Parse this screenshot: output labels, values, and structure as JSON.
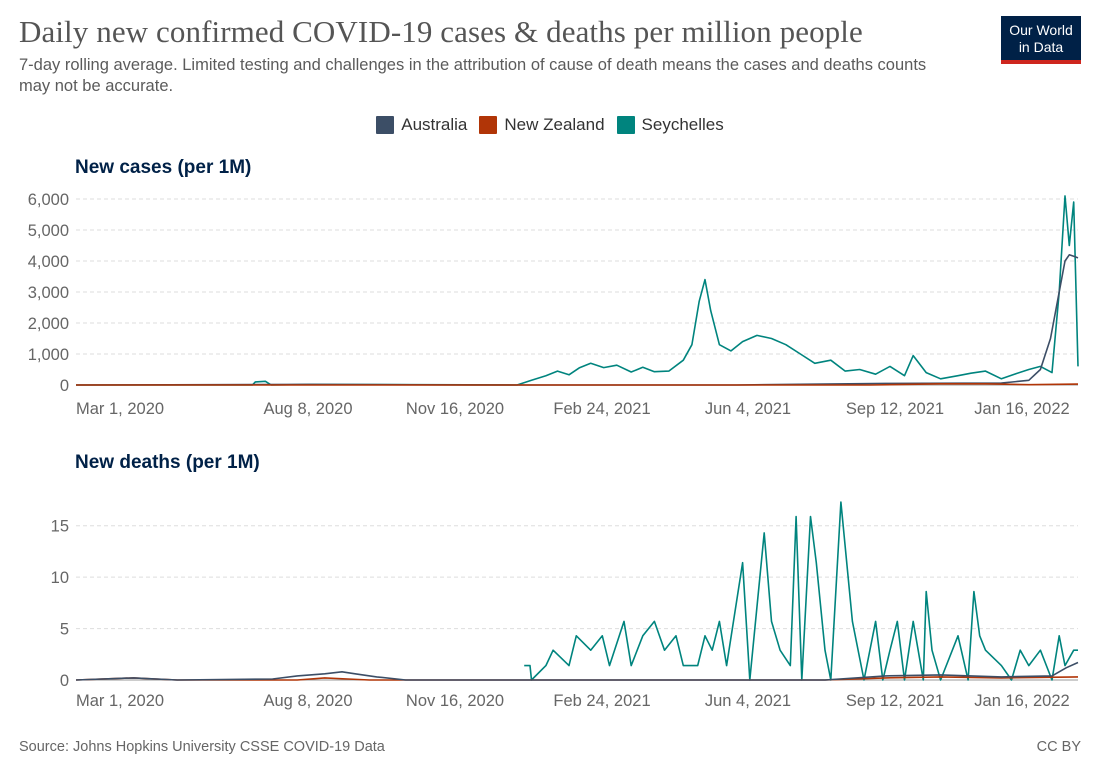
{
  "header": {
    "title": "Daily new confirmed COVID-19 cases & deaths per million people",
    "subtitle": "7-day rolling average. Limited testing and challenges in the attribution of cause of death means the cases and deaths counts may not be accurate.",
    "logo_line1": "Our World",
    "logo_line2": "in Data"
  },
  "colors": {
    "Australia": "#3c4e66",
    "New Zealand": "#b13507",
    "Seychelles": "#00847e"
  },
  "legend": [
    "Australia",
    "New Zealand",
    "Seychelles"
  ],
  "footer": {
    "source": "Source: Johns Hopkins University CSSE COVID-19 Data",
    "license": "CC BY"
  },
  "chart_data": [
    {
      "type": "line",
      "title": "New cases (per 1M)",
      "x_ticks": [
        "Mar 1, 2020",
        "Aug 8, 2020",
        "Nov 16, 2020",
        "Feb 24, 2021",
        "Jun 4, 2021",
        "Sep 12, 2021",
        "Jan 16, 2022"
      ],
      "ylim": [
        0,
        6000
      ],
      "y_ticks": [
        0,
        1000,
        2000,
        3000,
        4000,
        5000,
        6000
      ],
      "y_tick_labels": [
        "0",
        "1,000",
        "2,000",
        "3,000",
        "4,000",
        "5,000",
        "6,000"
      ],
      "grid": true,
      "legend": "top-center",
      "series": [
        {
          "name": "Seychelles",
          "x": [
            "2020-03-01",
            "2020-07-01",
            "2020-07-03",
            "2020-07-10",
            "2020-07-14",
            "2020-08-10",
            "2020-12-31",
            "2021-01-10",
            "2021-01-20",
            "2021-01-28",
            "2021-02-05",
            "2021-02-12",
            "2021-02-20",
            "2021-03-01",
            "2021-03-10",
            "2021-03-20",
            "2021-03-28",
            "2021-04-05",
            "2021-04-15",
            "2021-04-25",
            "2021-05-01",
            "2021-05-06",
            "2021-05-10",
            "2021-05-14",
            "2021-05-20",
            "2021-05-28",
            "2021-06-05",
            "2021-06-15",
            "2021-06-25",
            "2021-07-05",
            "2021-07-15",
            "2021-07-25",
            "2021-08-05",
            "2021-08-15",
            "2021-08-25",
            "2021-09-05",
            "2021-09-15",
            "2021-09-25",
            "2021-10-01",
            "2021-10-10",
            "2021-10-20",
            "2021-11-01",
            "2021-11-10",
            "2021-11-20",
            "2021-12-01",
            "2021-12-10",
            "2021-12-20",
            "2021-12-28",
            "2022-01-05",
            "2022-01-10",
            "2022-01-14",
            "2022-01-17",
            "2022-01-20",
            "2022-01-23"
          ],
          "y": [
            0,
            0,
            100,
            120,
            0,
            20,
            0,
            150,
            300,
            450,
            330,
            550,
            700,
            560,
            640,
            420,
            570,
            430,
            450,
            800,
            1300,
            2700,
            3400,
            2400,
            1300,
            1100,
            1400,
            1600,
            1500,
            1300,
            1000,
            700,
            800,
            450,
            500,
            350,
            600,
            300,
            950,
            400,
            200,
            300,
            380,
            450,
            200,
            350,
            500,
            600,
            400,
            3000,
            6100,
            4500,
            5900,
            600
          ]
        },
        {
          "name": "Australia",
          "x": [
            "2020-03-01",
            "2020-08-08",
            "2020-12-01",
            "2021-06-01",
            "2021-09-12",
            "2021-12-01",
            "2021-12-20",
            "2021-12-28",
            "2022-01-04",
            "2022-01-10",
            "2022-01-14",
            "2022-01-17",
            "2022-01-20",
            "2022-01-23"
          ],
          "y": [
            0,
            20,
            0,
            0,
            50,
            60,
            150,
            500,
            1500,
            3000,
            4000,
            4200,
            4150,
            4100
          ]
        },
        {
          "name": "New Zealand",
          "x": [
            "2020-03-01",
            "2021-09-01",
            "2021-10-20",
            "2021-11-20",
            "2021-12-20",
            "2022-01-23"
          ],
          "y": [
            0,
            0,
            40,
            40,
            10,
            30
          ]
        }
      ]
    },
    {
      "type": "line",
      "title": "New deaths (per 1M)",
      "x_ticks": [
        "Mar 1, 2020",
        "Aug 8, 2020",
        "Nov 16, 2020",
        "Feb 24, 2021",
        "Jun 4, 2021",
        "Sep 12, 2021",
        "Jan 16, 2022"
      ],
      "ylim": [
        0,
        17.5
      ],
      "y_ticks": [
        0,
        5,
        10,
        15
      ],
      "y_tick_labels": [
        "0",
        "5",
        "10",
        "15"
      ],
      "grid": true,
      "series": [
        {
          "name": "Seychelles",
          "x": [
            "2021-01-05",
            "2021-01-09",
            "2021-01-10",
            "2021-01-20",
            "2021-01-25",
            "2021-02-05",
            "2021-02-10",
            "2021-02-20",
            "2021-02-28",
            "2021-03-05",
            "2021-03-15",
            "2021-03-20",
            "2021-03-28",
            "2021-04-05",
            "2021-04-12",
            "2021-04-20",
            "2021-04-25",
            "2021-05-05",
            "2021-05-10",
            "2021-05-15",
            "2021-05-20",
            "2021-05-25",
            "2021-06-05",
            "2021-06-10",
            "2021-06-20",
            "2021-06-25",
            "2021-07-01",
            "2021-07-08",
            "2021-07-12",
            "2021-07-16",
            "2021-07-22",
            "2021-07-26",
            "2021-08-01",
            "2021-08-05",
            "2021-08-12",
            "2021-08-20",
            "2021-08-28",
            "2021-09-05",
            "2021-09-10",
            "2021-09-15",
            "2021-09-20",
            "2021-09-25",
            "2021-10-01",
            "2021-10-08",
            "2021-10-10",
            "2021-10-14",
            "2021-10-20",
            "2021-11-01",
            "2021-11-08",
            "2021-11-12",
            "2021-11-16",
            "2021-11-20",
            "2021-12-01",
            "2021-12-08",
            "2021-12-14",
            "2021-12-20",
            "2021-12-28",
            "2022-01-05",
            "2022-01-10",
            "2022-01-14",
            "2022-01-20",
            "2022-01-23"
          ],
          "y": [
            1.4,
            1.4,
            0,
            1.4,
            2.9,
            1.4,
            4.3,
            2.9,
            4.3,
            1.4,
            5.7,
            1.4,
            4.3,
            5.7,
            2.9,
            4.3,
            1.4,
            1.4,
            4.3,
            2.9,
            5.7,
            1.4,
            11.4,
            0,
            14.3,
            5.7,
            2.9,
            1.4,
            15.9,
            0,
            15.9,
            11.4,
            2.9,
            0,
            17.3,
            5.7,
            0,
            5.7,
            0,
            2.9,
            5.7,
            0,
            5.7,
            0,
            8.6,
            2.9,
            0,
            4.3,
            0,
            8.6,
            4.3,
            2.9,
            1.4,
            0,
            2.9,
            1.4,
            2.9,
            0,
            4.3,
            1.4,
            2.9,
            2.9
          ]
        },
        {
          "name": "New Zealand",
          "x": [
            "2020-03-01",
            "2020-04-10",
            "2020-04-25",
            "2020-05-10",
            "2020-08-01",
            "2020-08-20",
            "2020-09-05",
            "2020-09-20",
            "2021-08-01",
            "2021-09-12",
            "2021-10-20",
            "2021-12-01",
            "2022-01-23"
          ],
          "y": [
            0,
            0.2,
            0.1,
            0,
            0,
            0.2,
            0.1,
            0,
            0,
            0.2,
            0.3,
            0.2,
            0.3
          ]
        },
        {
          "name": "Australia",
          "x": [
            "2020-03-01",
            "2020-04-10",
            "2020-05-10",
            "2020-07-15",
            "2020-08-01",
            "2020-08-20",
            "2020-09-01",
            "2020-09-10",
            "2020-09-25",
            "2020-10-15",
            "2021-08-01",
            "2021-09-12",
            "2021-10-20",
            "2021-12-01",
            "2022-01-05",
            "2022-01-15",
            "2022-01-23"
          ],
          "y": [
            0,
            0.2,
            0,
            0.1,
            0.4,
            0.6,
            0.8,
            0.6,
            0.3,
            0,
            0,
            0.4,
            0.5,
            0.3,
            0.4,
            1.2,
            1.7
          ]
        }
      ]
    }
  ]
}
